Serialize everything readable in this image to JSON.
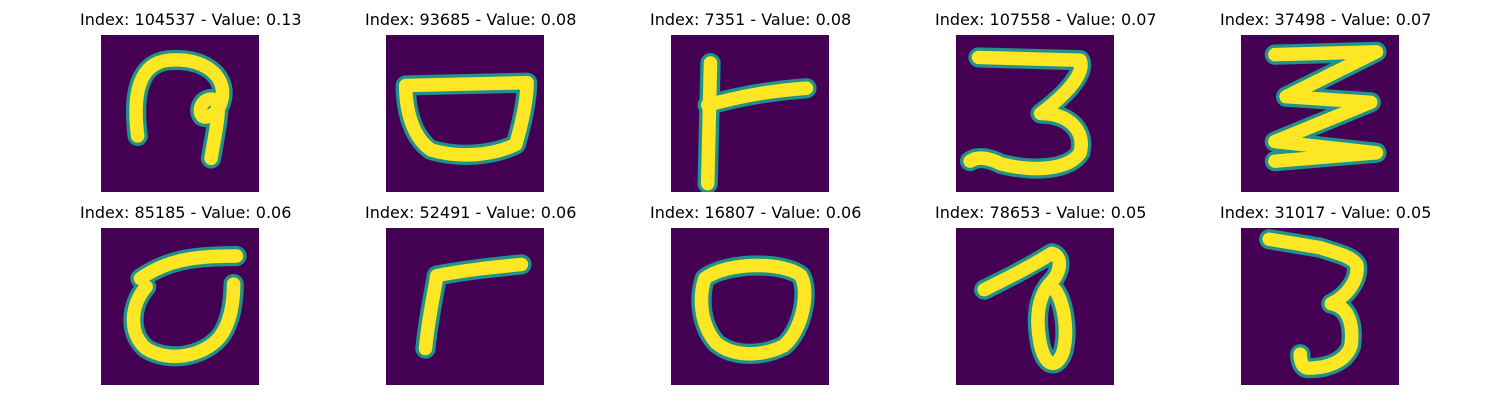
{
  "figure": {
    "background": "#ffffff",
    "image_bg": "#440154",
    "stroke_core": "#fde725",
    "stroke_edge": "#21918c",
    "tiles": [
      {
        "title": "Index: 104537 - Value: 0.13",
        "glyph": "glyph-1"
      },
      {
        "title": "Index: 93685 - Value: 0.08",
        "glyph": "glyph-2"
      },
      {
        "title": "Index: 7351 - Value: 0.08",
        "glyph": "glyph-3"
      },
      {
        "title": "Index: 107558 - Value: 0.07",
        "glyph": "glyph-4"
      },
      {
        "title": "Index: 37498 - Value: 0.07",
        "glyph": "glyph-5"
      },
      {
        "title": "Index: 85185 - Value: 0.06",
        "glyph": "glyph-6"
      },
      {
        "title": "Index: 52491 - Value: 0.06",
        "glyph": "glyph-7"
      },
      {
        "title": "Index: 16807 - Value: 0.06",
        "glyph": "glyph-8"
      },
      {
        "title": "Index: 78653 - Value: 0.05",
        "glyph": "glyph-9"
      },
      {
        "title": "Index: 31017 - Value: 0.05",
        "glyph": "glyph-10"
      }
    ]
  }
}
